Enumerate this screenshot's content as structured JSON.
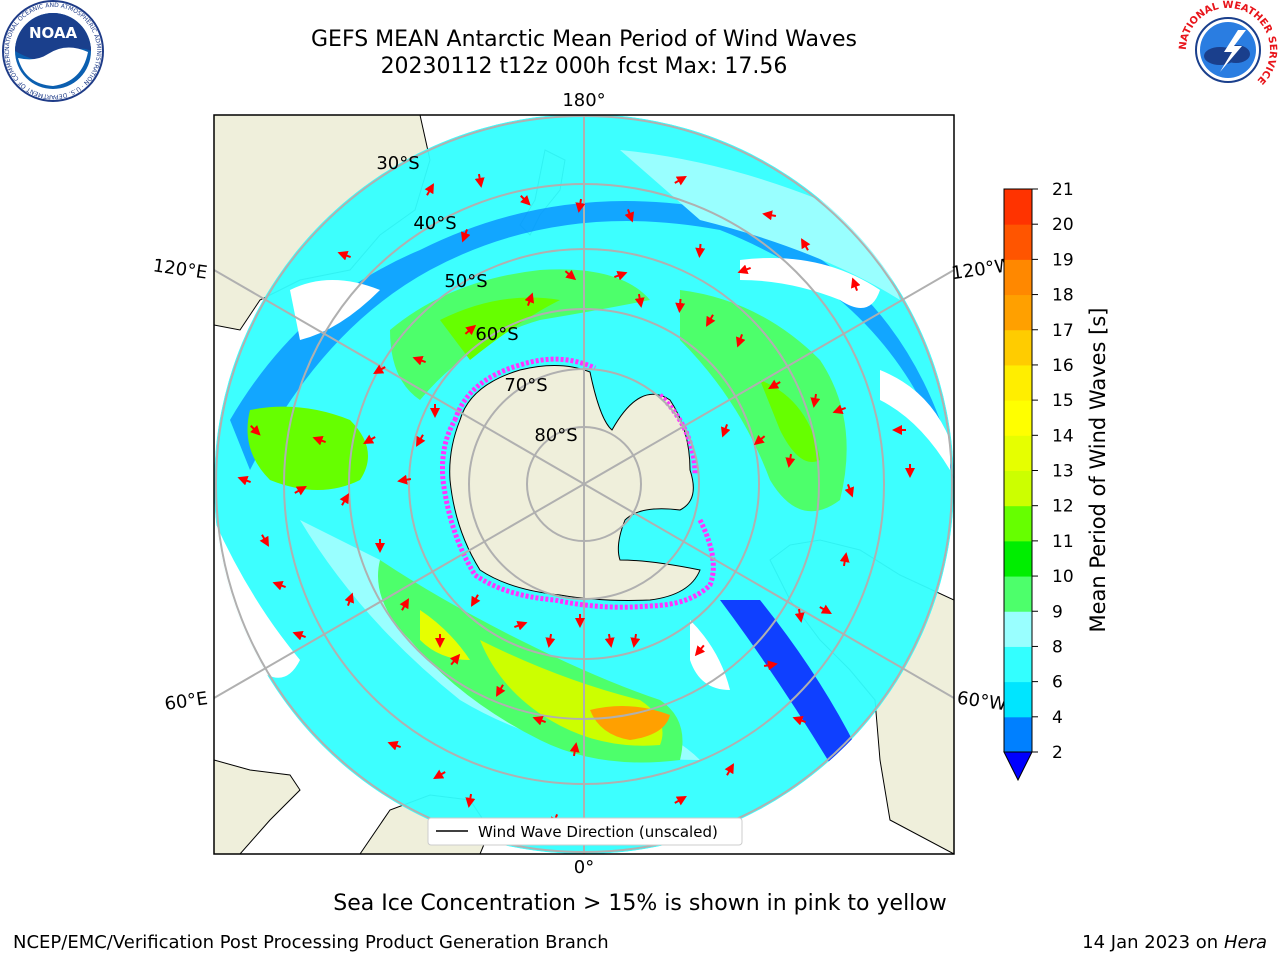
{
  "title": "GEFS MEAN Antarctic Mean Period of Wind Waves",
  "subtitle": "20230112 t12z 000h fcst   Max: 17.56",
  "map": {
    "projection": "south-polar-stereographic",
    "lon_labels": [
      "180°",
      "120°E",
      "120°W",
      "60°E",
      "60°W",
      "0°"
    ],
    "lat_labels": [
      "30°S",
      "40°S",
      "50°S",
      "60°S",
      "70°S",
      "80°S"
    ],
    "legend_label": "Wind Wave Direction (unscaled)",
    "arrow_color": "#ff0000",
    "land_color": "#efefdb",
    "sea_ice_color": "#ff33ff"
  },
  "colorbar": {
    "label": "Mean Period of Wind Waves [s]",
    "ticks": [
      "2",
      "4",
      "6",
      "8",
      "9",
      "10",
      "11",
      "12",
      "13",
      "14",
      "15",
      "16",
      "17",
      "18",
      "19",
      "20",
      "21"
    ],
    "colors": [
      "#0080ff",
      "#00e5ff",
      "#33ffff",
      "#99ffff",
      "#4dff6b",
      "#00ee00",
      "#66ff00",
      "#ccff00",
      "#e6ff00",
      "#ffff00",
      "#ffee00",
      "#ffcc00",
      "#ffa000",
      "#ff8800",
      "#ff5500",
      "#ff3300"
    ],
    "under_color": "#0000ff"
  },
  "caption": "Sea Ice Concentration > 15% is shown in pink to yellow",
  "footer": {
    "left": "NCEP/EMC/Verification Post Processing Product Generation Branch",
    "date": "14 Jan 2023 on",
    "machine": "Hera"
  },
  "logos": {
    "noaa_text": "NOAA",
    "noaa_ring": "NATIONAL OCEANIC AND ATMOSPHERIC ADMINISTRATION · U.S. DEPARTMENT OF COMMERCE ·",
    "nws_ring": "NATIONAL WEATHER SERVICE"
  }
}
